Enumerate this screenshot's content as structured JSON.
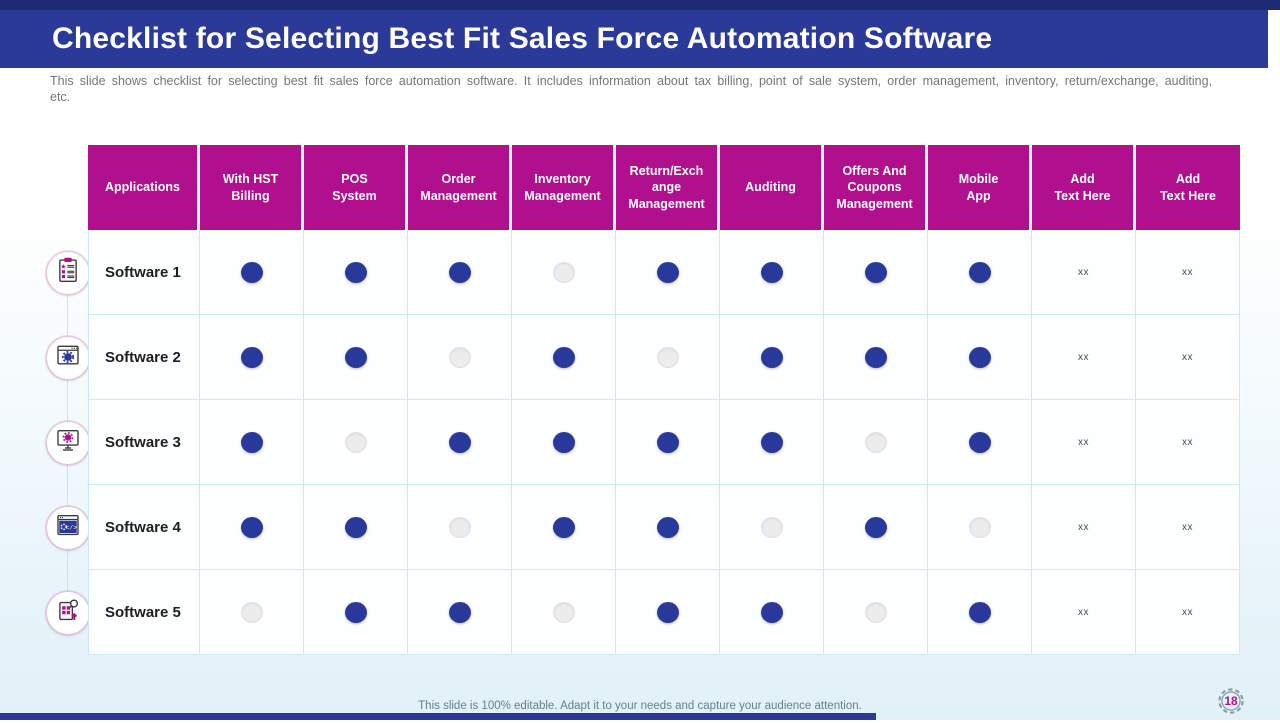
{
  "slide": {
    "title": "Checklist for Selecting Best Fit Sales Force Automation Software",
    "description": "This slide shows checklist for selecting best fit sales force automation software. It includes information about tax billing, point of sale system, order management, inventory, return/exchange, auditing, etc.",
    "footer": "This slide is 100% editable. Adapt it to your  needs and capture your audience attention.",
    "page_number": "18"
  },
  "colors": {
    "title_bar": "#2b3999",
    "top_strip": "#1d2b72",
    "header_cell_magenta": "#b00f8d",
    "dot_filled_blue": "#28389b",
    "dot_empty_gray": "#ececec",
    "grid_line": "#cde9f3"
  },
  "table": {
    "columns": [
      {
        "lines": [
          "Applications"
        ]
      },
      {
        "lines": [
          "With HST",
          "Billing"
        ]
      },
      {
        "lines": [
          "POS",
          "System"
        ]
      },
      {
        "lines": [
          "Order",
          "Management"
        ]
      },
      {
        "lines": [
          "Inventory",
          "Management"
        ]
      },
      {
        "lines": [
          "Return/Exch",
          "ange",
          "Management"
        ]
      },
      {
        "lines": [
          "Auditing"
        ]
      },
      {
        "lines": [
          "Offers And",
          "Coupons",
          "Management"
        ]
      },
      {
        "lines": [
          "Mobile",
          "App"
        ]
      },
      {
        "lines": [
          "Add",
          "Text Here"
        ]
      },
      {
        "lines": [
          "Add",
          "Text Here"
        ]
      }
    ],
    "rows": [
      {
        "label": "Software 1",
        "icon": "clipboard-checklist-icon",
        "checks": [
          1,
          1,
          1,
          0,
          1,
          1,
          1,
          1
        ],
        "extras": [
          "xx",
          "xx"
        ]
      },
      {
        "label": "Software 2",
        "icon": "browser-gear-icon",
        "checks": [
          1,
          1,
          0,
          1,
          0,
          1,
          1,
          1
        ],
        "extras": [
          "xx",
          "xx"
        ]
      },
      {
        "label": "Software 3",
        "icon": "monitor-gear-icon",
        "checks": [
          1,
          0,
          1,
          1,
          1,
          1,
          0,
          1
        ],
        "extras": [
          "xx",
          "xx"
        ]
      },
      {
        "label": "Software 4",
        "icon": "code-window-icon",
        "checks": [
          1,
          1,
          0,
          1,
          1,
          0,
          1,
          0
        ],
        "extras": [
          "xx",
          "xx"
        ]
      },
      {
        "label": "Software 5",
        "icon": "device-upload-icon",
        "checks": [
          0,
          1,
          1,
          0,
          1,
          1,
          0,
          1
        ],
        "extras": [
          "xx",
          "xx"
        ]
      }
    ]
  }
}
